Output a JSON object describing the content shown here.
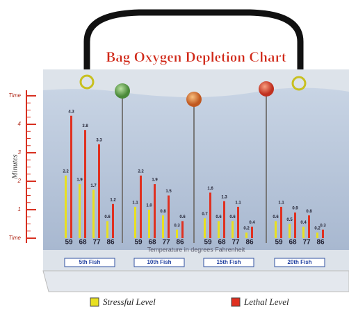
{
  "chart_data": {
    "type": "bar",
    "title": "Bag Oxygen Depletion Chart",
    "y_label": "Minutes",
    "x_label": "Temperature in degrees Fahrenheit",
    "groups": [
      "5th Fish",
      "10th Fish",
      "15th Fish",
      "20th Fish"
    ],
    "categories": [
      "59",
      "68",
      "77",
      "86"
    ],
    "ylim": [
      0,
      5
    ],
    "yticks": [
      {
        "value": 0,
        "label": "Time"
      },
      1,
      2,
      3,
      4,
      {
        "value": 5,
        "label": "Time"
      }
    ],
    "series": [
      {
        "name": "Stressful Level",
        "color": "#e8e020",
        "values": [
          [
            2.2,
            1.9,
            1.7,
            0.6
          ],
          [
            1.1,
            1,
            0.8,
            0.3
          ],
          [
            0.7,
            0.6,
            0.6,
            0.2
          ],
          [
            0.6,
            0.5,
            0.4,
            0.2
          ]
        ],
        "value_labels": [
          [
            "2.2",
            "1.9",
            "1.7",
            "0.6"
          ],
          [
            "1.1",
            "1.0",
            "0.8",
            "0.3"
          ],
          [
            "0.7",
            "0.6",
            "0.6",
            "0.2"
          ],
          [
            "0.6",
            "0.5",
            "0.4",
            "0.2"
          ]
        ]
      },
      {
        "name": "Lethal Level",
        "color": "#e03020",
        "values": [
          [
            4.3,
            3.8,
            3.3,
            1.2
          ],
          [
            2.2,
            1.9,
            1.5,
            0.6
          ],
          [
            1.6,
            1.3,
            1.1,
            0.4
          ],
          [
            1.1,
            0.9,
            0.8,
            0.3
          ]
        ],
        "value_labels": [
          [
            "4.3",
            "3.8",
            "3.3",
            "1.2"
          ],
          [
            "2.2",
            "1.9",
            "1.5",
            "0.6"
          ],
          [
            "1.6",
            "1.3",
            "1.1",
            "0.4"
          ],
          [
            "1.1",
            "0.9",
            "0.8",
            "0.3"
          ]
        ]
      }
    ]
  }
}
